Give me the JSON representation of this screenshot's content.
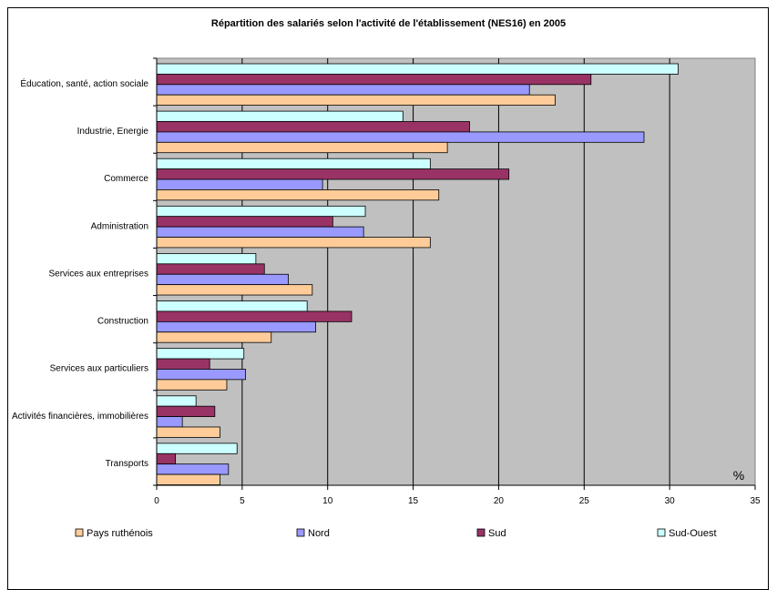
{
  "chart_data": {
    "type": "bar",
    "orientation": "horizontal",
    "title": "Répartition des salariés selon l'activité de l'établissement (NES16) en 2005",
    "unit_label": "%",
    "categories": [
      "Éducation, santé, action sociale",
      "Industrie, Energie",
      "Commerce",
      "Administration",
      "Services aux entreprises",
      "Construction",
      "Services aux particuliers",
      "Activités financières, immobilières",
      "Transports"
    ],
    "series": [
      {
        "name": "Sud-Ouest",
        "color": "#ccffff",
        "values": [
          30.5,
          14.4,
          16.0,
          12.2,
          5.8,
          8.8,
          5.1,
          2.3,
          4.7
        ]
      },
      {
        "name": "Sud",
        "color": "#993366",
        "values": [
          25.4,
          18.3,
          20.6,
          10.3,
          6.3,
          11.4,
          3.1,
          3.4,
          1.1
        ]
      },
      {
        "name": "Nord",
        "color": "#9999ff",
        "values": [
          21.8,
          28.5,
          9.7,
          12.1,
          7.7,
          9.3,
          5.2,
          1.5,
          4.2
        ]
      },
      {
        "name": "Pays ruthénois",
        "color": "#ffcc99",
        "values": [
          23.3,
          17.0,
          16.5,
          16.0,
          9.1,
          6.7,
          4.1,
          3.7,
          3.7
        ]
      }
    ],
    "legend_order": [
      "Pays ruthénois",
      "Nord",
      "Sud",
      "Sud-Ouest"
    ],
    "xlim": [
      0,
      35
    ],
    "x_ticks": [
      0,
      5,
      10,
      15,
      20,
      25,
      30,
      35
    ],
    "grid": true,
    "plot_background": "#c0c0c0",
    "legend_position": "bottom"
  }
}
